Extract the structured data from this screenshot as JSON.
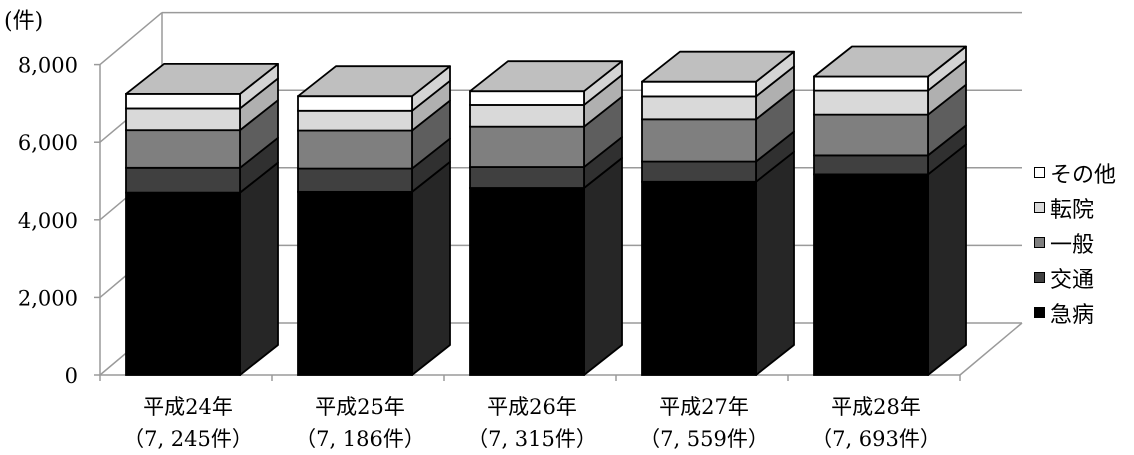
{
  "chart_data": {
    "type": "bar",
    "stacked": true,
    "three_d": true,
    "y_unit_label": "(件)",
    "ylim": [
      0,
      8000
    ],
    "yticks": [
      "0",
      "2,000",
      "4,000",
      "6,000",
      "8,000"
    ],
    "ytick_values": [
      0,
      2000,
      4000,
      6000,
      8000
    ],
    "categories": [
      {
        "label": "平成24年",
        "total_label": "（7, 245件）"
      },
      {
        "label": "平成25年",
        "total_label": "（7, 186件）"
      },
      {
        "label": "平成26年",
        "total_label": "（7, 315件）"
      },
      {
        "label": "平成27年",
        "total_label": "（7, 559件）"
      },
      {
        "label": "平成28年",
        "total_label": "（7, 693件）"
      }
    ],
    "series": [
      {
        "name": "急病",
        "color": "#000000",
        "values": [
          4700,
          4720,
          4820,
          4980,
          5170
        ]
      },
      {
        "name": "交通",
        "color": "#404040",
        "values": [
          640,
          600,
          540,
          520,
          490
        ]
      },
      {
        "name": "一般",
        "color": "#7f7f7f",
        "values": [
          970,
          980,
          1040,
          1090,
          1050
        ]
      },
      {
        "name": "転院",
        "color": "#d9d9d9",
        "values": [
          560,
          510,
          560,
          590,
          620
        ]
      },
      {
        "name": "その他",
        "color": "#ffffff",
        "values": [
          375,
          376,
          355,
          379,
          363
        ]
      }
    ],
    "grid": true,
    "legend_position": "right"
  }
}
